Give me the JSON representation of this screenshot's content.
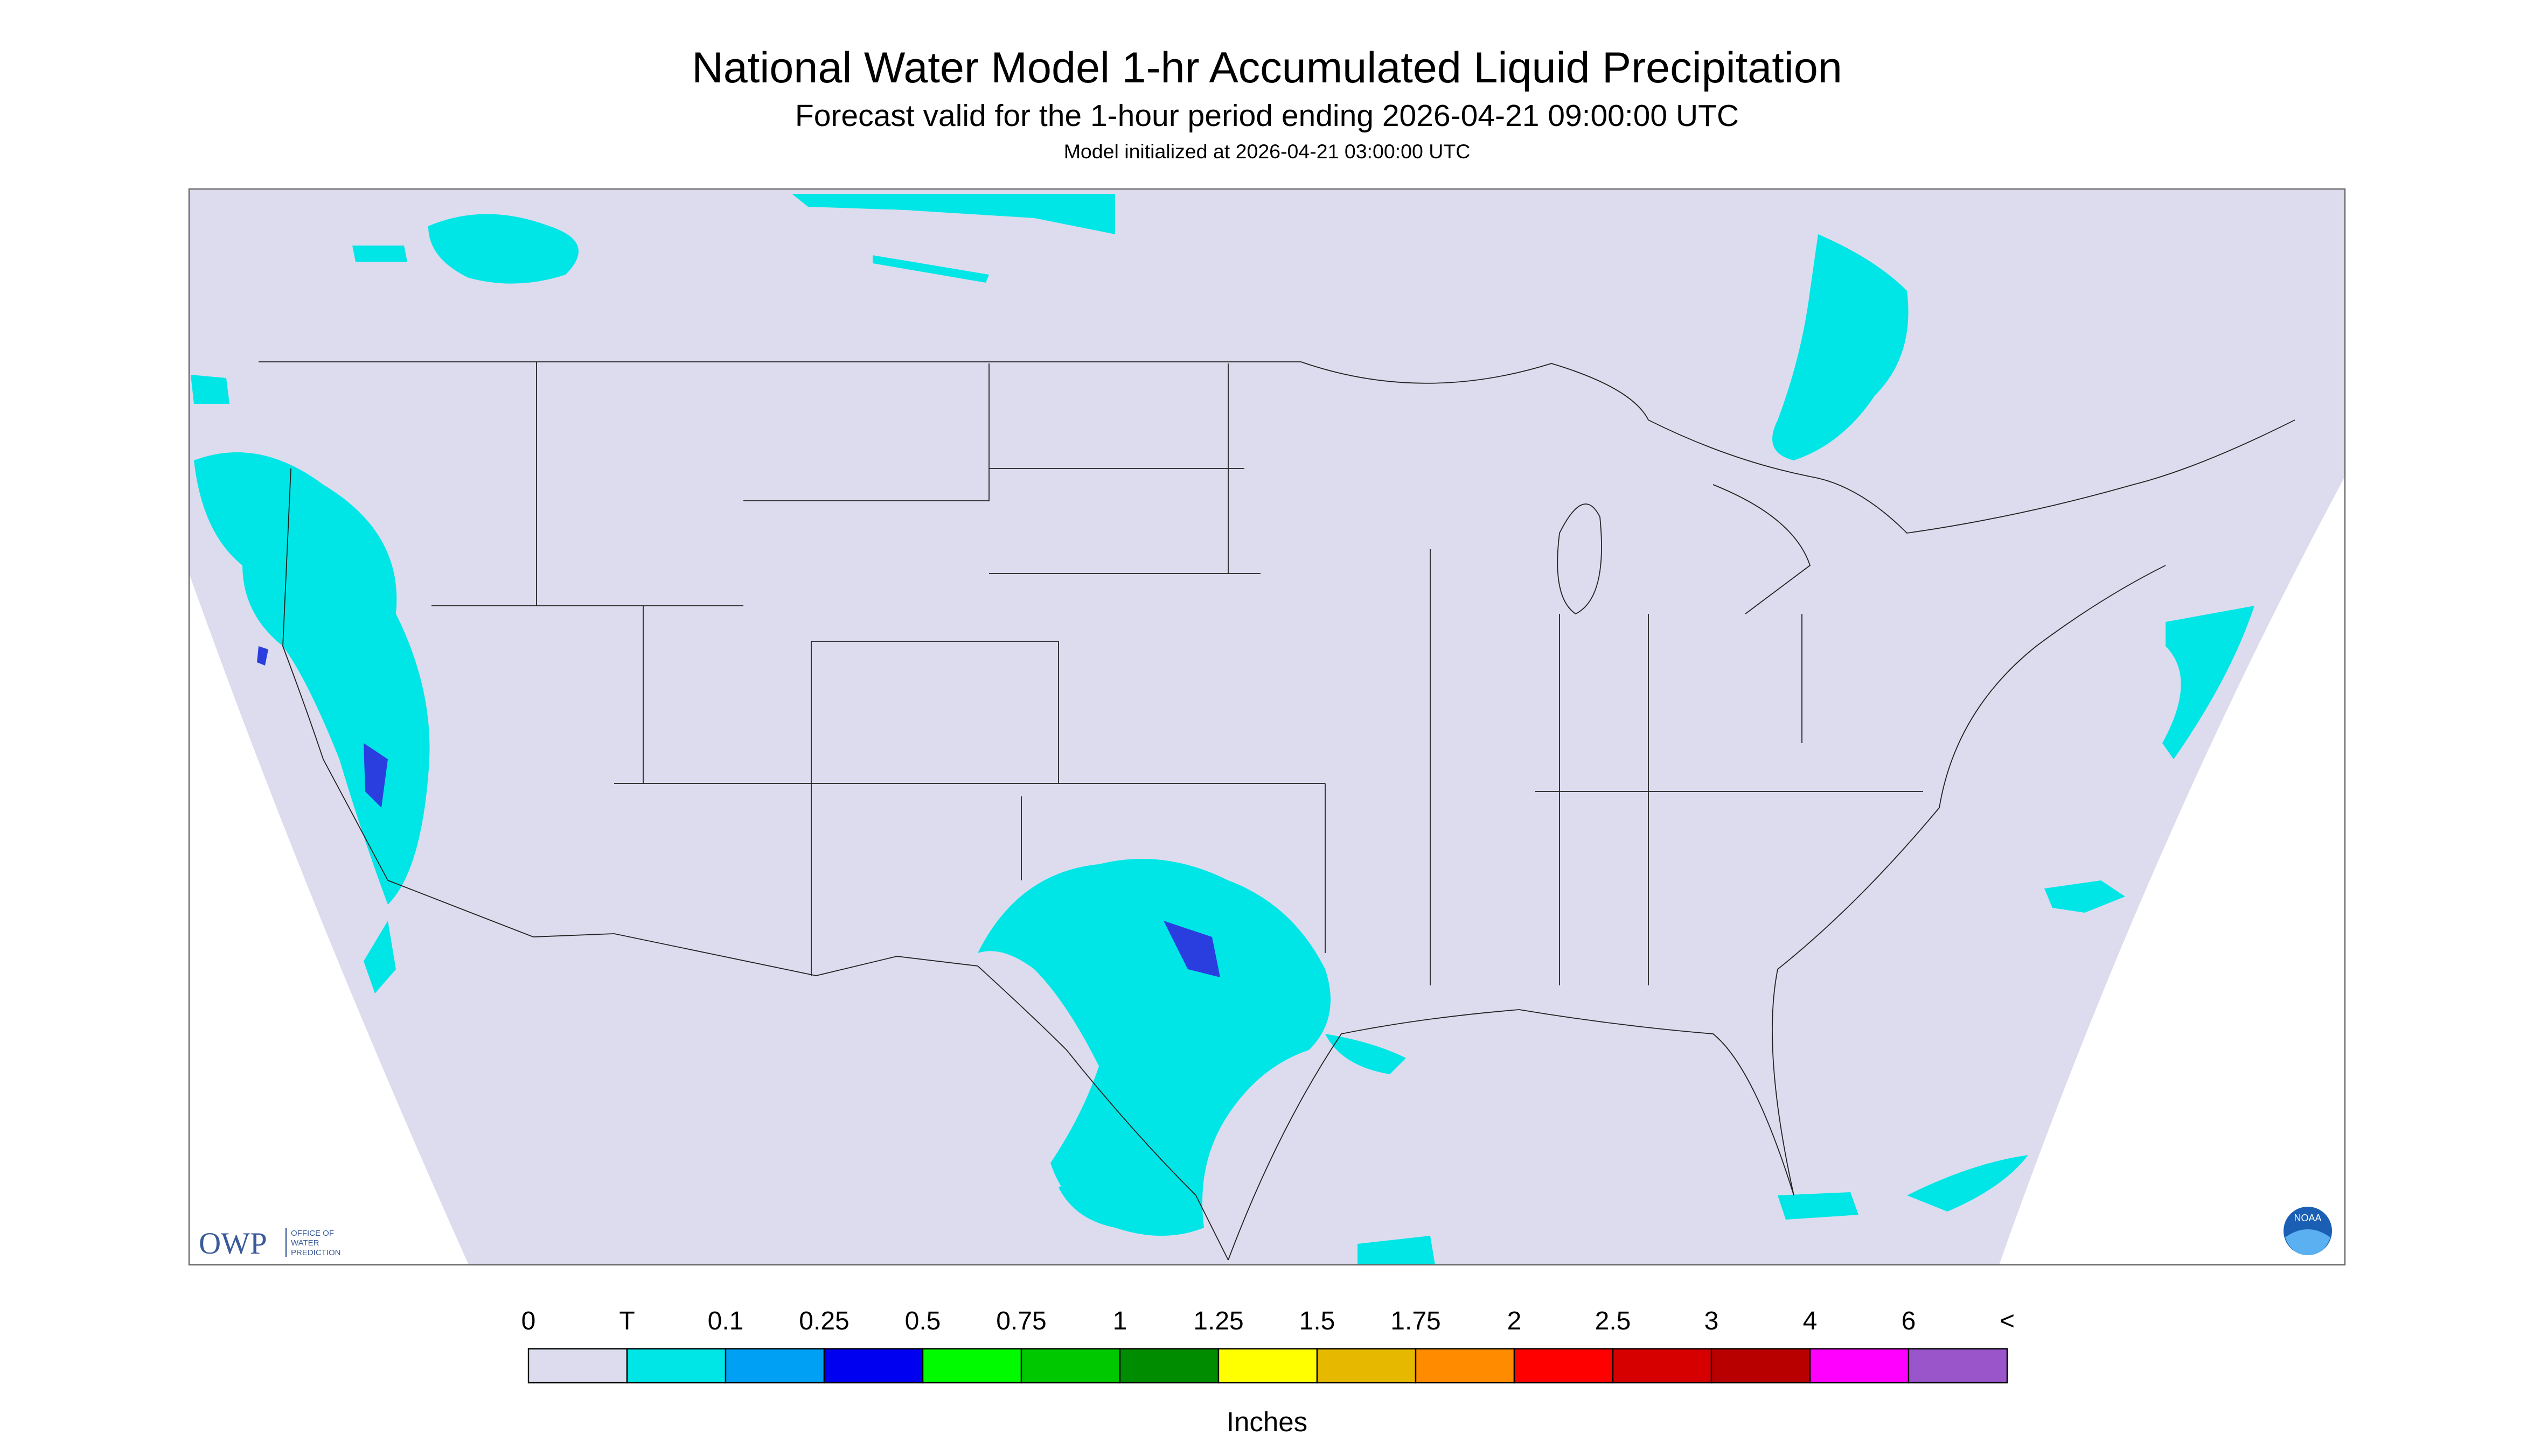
{
  "header": {
    "title": "National Water Model 1-hr Accumulated Liquid Precipitation",
    "subtitle": "Forecast valid for the 1-hour period ending 2026-04-21 09:00:00 UTC",
    "init": "Model initialized at 2026-04-21 03:00:00 UTC"
  },
  "logos": {
    "owp": "OWP",
    "owp_name": [
      "OFFICE OF",
      "WATER",
      "PREDICTION"
    ],
    "noaa": "NOAA"
  },
  "legend": {
    "labels": [
      "0",
      "T",
      "0.1",
      "0.25",
      "0.5",
      "0.75",
      "1",
      "1.25",
      "1.5",
      "1.75",
      "2",
      "2.5",
      "3",
      "4",
      "6",
      "<"
    ],
    "colors": [
      "#dcdcee",
      "#00e6e6",
      "#00a0f5",
      "#0000f0",
      "#00fa00",
      "#00c800",
      "#008c00",
      "#ffff00",
      "#e6b800",
      "#ff8c00",
      "#ff0000",
      "#d70000",
      "#b90000",
      "#ff00ff",
      "#9955c9"
    ],
    "unit": "Inches"
  }
}
